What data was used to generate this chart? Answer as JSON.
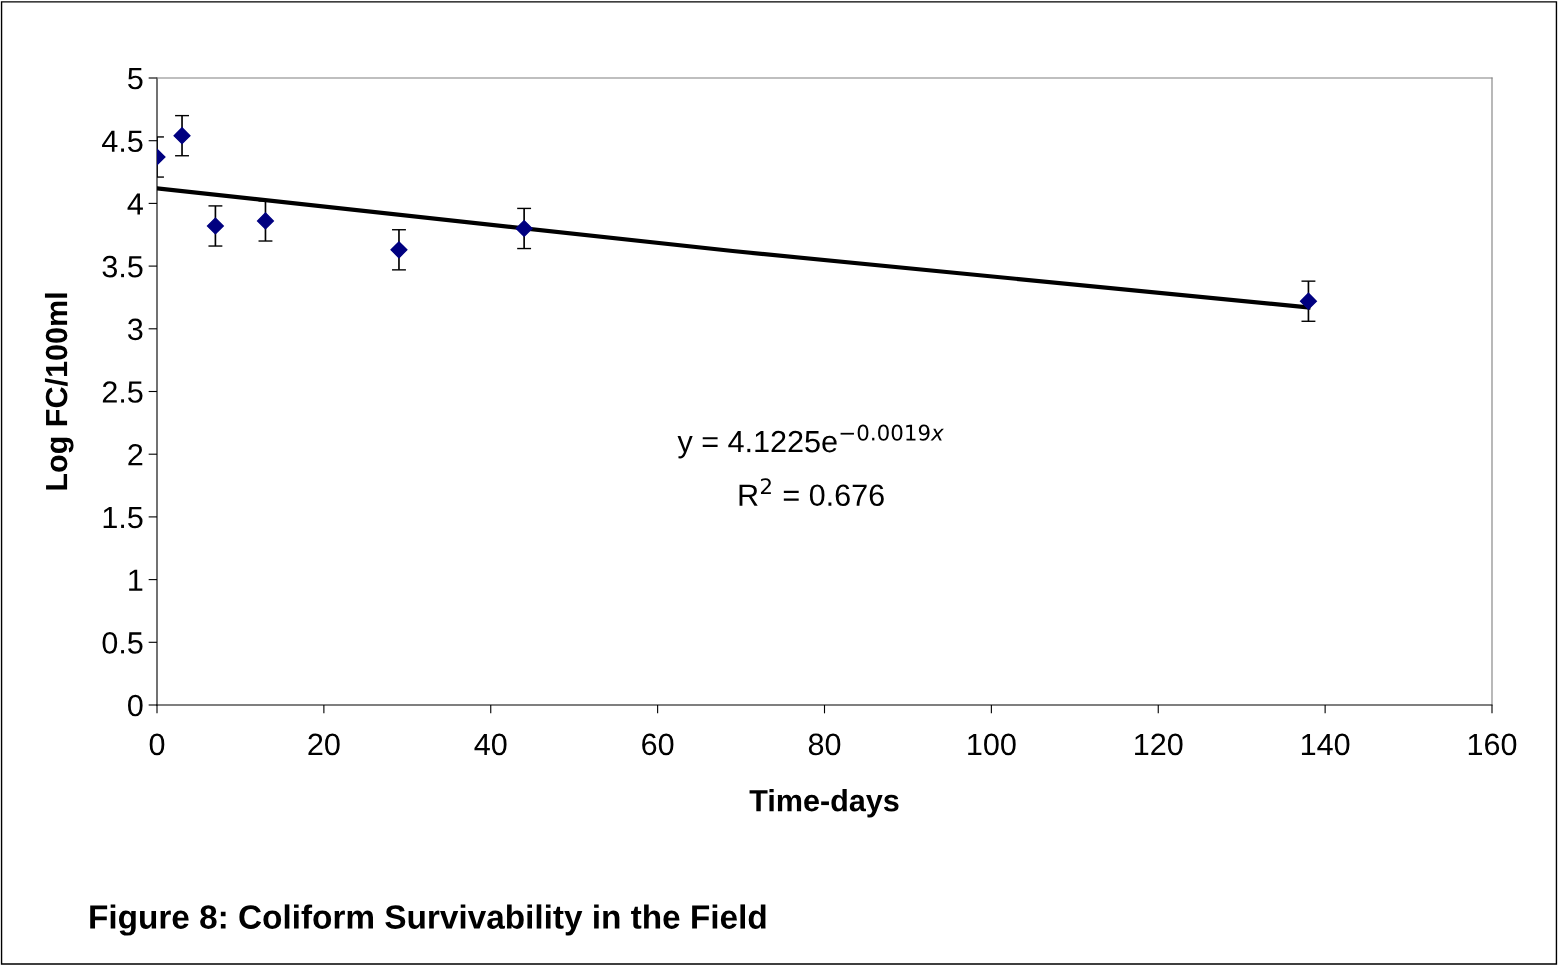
{
  "chart_data": {
    "type": "scatter",
    "xlabel": "Time-days",
    "ylabel": "Log FC/100ml",
    "x": [
      0,
      3,
      7,
      13,
      29,
      44,
      138
    ],
    "series": [
      {
        "color": "#000080",
        "values": [
          4.37,
          4.54,
          3.82,
          3.86,
          3.63,
          3.8,
          3.22
        ],
        "errors": [
          0.16,
          0.16,
          0.16,
          0.16,
          0.16,
          0.16,
          0.16
        ],
        "marker": "diamond"
      },
      {
        "type": "line",
        "color": "#000000",
        "x": [
          0,
          69,
          138
        ],
        "values": [
          4.12,
          3.62,
          3.17
        ],
        "marker": "none"
      }
    ],
    "xlim": [
      0,
      160
    ],
    "xticks": [
      0,
      20,
      40,
      60,
      80,
      100,
      120,
      140,
      160
    ],
    "ylim": [
      0,
      5
    ],
    "yticks": [
      0,
      0.5,
      1,
      1.5,
      2,
      2.5,
      3,
      3.5,
      4,
      4.5,
      5
    ],
    "grid": false,
    "legend": false,
    "annotations": [
      "y = 4.1225e$^{−0.0019x}$",
      "R$^{2}$ = 0.676",
      "Figure 8: Coliform Survivability in the Field"
    ]
  }
}
